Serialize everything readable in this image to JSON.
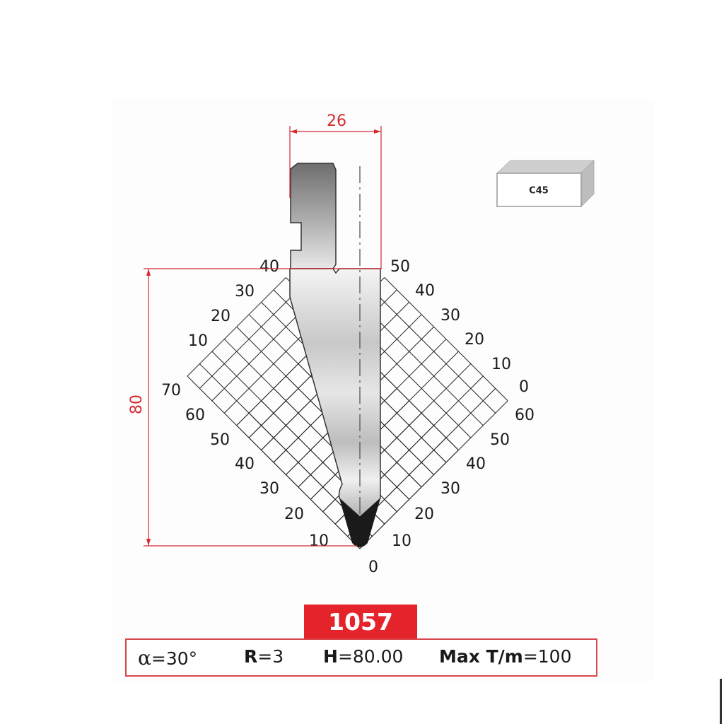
{
  "dimensions": {
    "width_label": "26",
    "height_label": "80"
  },
  "material": {
    "label": "C45"
  },
  "model": {
    "number": "1057"
  },
  "specs": {
    "angle_symbol": "α",
    "angle_value": "=30°",
    "radius_key": "R",
    "radius_value": "=3",
    "height_key": "H",
    "height_value": "=80.00",
    "max_key": "Max T/m",
    "max_value": "=100"
  },
  "grid": {
    "left_lower_labels": [
      "10",
      "20",
      "30",
      "40",
      "50",
      "60",
      "70"
    ],
    "left_upper_labels": [
      "10",
      "20",
      "30",
      "40"
    ],
    "right_lower_labels": [
      "10",
      "20",
      "30",
      "40",
      "50",
      "60"
    ],
    "right_upper_labels": [
      "0",
      "10",
      "20",
      "30",
      "40",
      "50"
    ],
    "bottom_label": "0"
  },
  "colors": {
    "accent": "#e5232a",
    "dimension": "#d42a30",
    "tool_tip": "#1a1a1a"
  }
}
